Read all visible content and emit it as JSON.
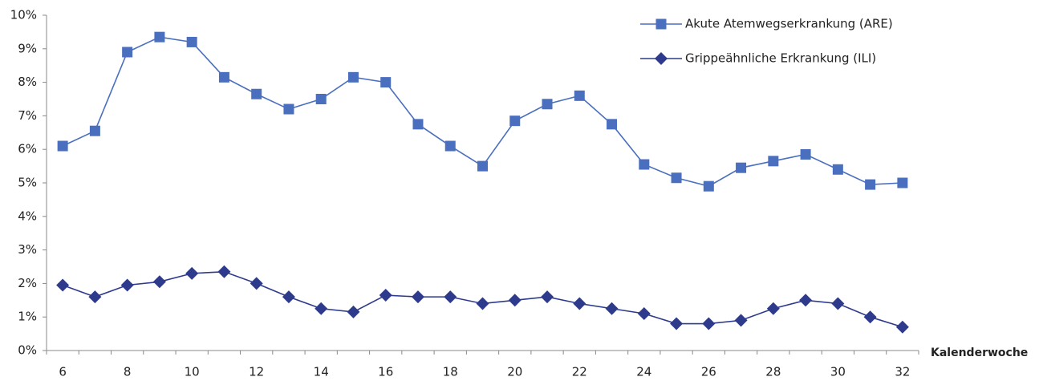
{
  "chart_data": {
    "type": "line",
    "categories": [
      6,
      null,
      8,
      null,
      10,
      null,
      12,
      null,
      14,
      null,
      16,
      null,
      18,
      null,
      20,
      null,
      22,
      null,
      24,
      null,
      26,
      null,
      28,
      null,
      30,
      null,
      32
    ],
    "x_label": "Kalenderwoche",
    "ylim": [
      0,
      10
    ],
    "yticks": [
      {
        "value": 0,
        "label": "0%"
      },
      {
        "value": 1,
        "label": "1%"
      },
      {
        "value": 2,
        "label": "2%"
      },
      {
        "value": 3,
        "label": "3%"
      },
      {
        "value": 4,
        "label": "4%"
      },
      {
        "value": 5,
        "label": "5%"
      },
      {
        "value": 6,
        "label": "6%"
      },
      {
        "value": 7,
        "label": "7%"
      },
      {
        "value": 8,
        "label": "8%"
      },
      {
        "value": 9,
        "label": "9%"
      },
      {
        "value": 10,
        "label": "10%"
      }
    ],
    "legend": "upper right",
    "series": [
      {
        "name": "Akute Atemwegserkrankung (ARE)",
        "color": "#4a6fbf",
        "marker": "square",
        "values": [
          6.1,
          6.55,
          8.9,
          9.35,
          9.2,
          8.15,
          7.65,
          7.2,
          7.5,
          8.15,
          8.0,
          6.75,
          6.1,
          5.5,
          6.85,
          7.35,
          7.6,
          6.75,
          5.55,
          5.15,
          4.9,
          5.45,
          5.65,
          5.85,
          5.4,
          4.95,
          5.0
        ]
      },
      {
        "name": "Grippeähnliche Erkrankung (ILI)",
        "color": "#2e3a8c",
        "marker": "diamond",
        "values": [
          1.95,
          1.6,
          1.95,
          2.05,
          2.3,
          2.35,
          2.0,
          1.6,
          1.25,
          1.15,
          1.65,
          1.6,
          1.6,
          1.4,
          1.5,
          1.6,
          1.4,
          1.25,
          1.1,
          0.8,
          0.8,
          0.9,
          1.25,
          1.5,
          1.4,
          1.0,
          0.7
        ]
      }
    ]
  }
}
